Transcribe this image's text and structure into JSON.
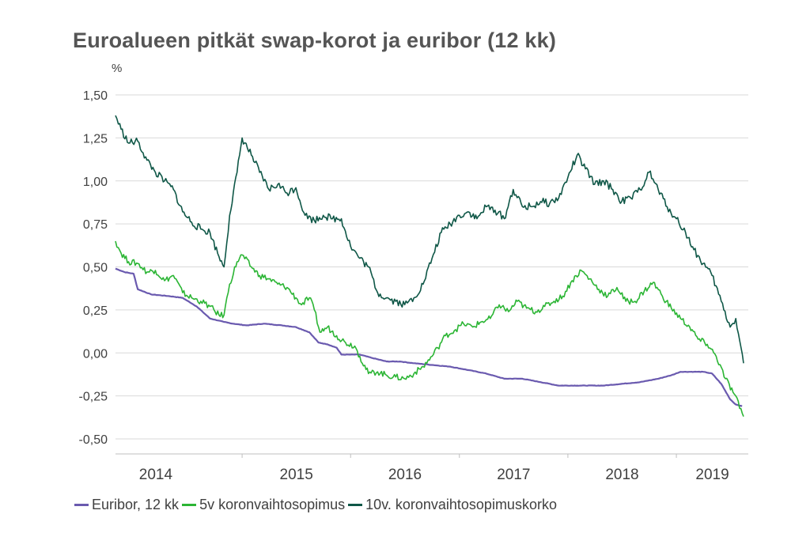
{
  "chart_data": {
    "type": "line",
    "title": "Euroalueen pitkät swap-korot ja euribor (12 kk)",
    "ylabel": "%",
    "xlabel": "",
    "ylim": [
      -0.5,
      1.5
    ],
    "xlim": [
      "2013-11-01",
      "2019-08-31"
    ],
    "yticks": [
      "1,50",
      "1,25",
      "1,00",
      "0,75",
      "0,50",
      "0,25",
      "0,00",
      "-0,25",
      "-0,50"
    ],
    "ytick_values": [
      1.5,
      1.25,
      1.0,
      0.75,
      0.5,
      0.25,
      0.0,
      -0.25,
      -0.5
    ],
    "xticks": [
      "2014",
      "2015",
      "2016",
      "2017",
      "2018",
      "2019"
    ],
    "grid": "horizontal",
    "legend_position": "bottom",
    "series": [
      {
        "name": "Euribor, 12 kk",
        "color": "#6a5aaf",
        "points": [
          [
            "2013-11-01",
            0.49
          ],
          [
            "2013-12-01",
            0.47
          ],
          [
            "2014-01-01",
            0.46
          ],
          [
            "2014-01-15",
            0.37
          ],
          [
            "2014-03-01",
            0.34
          ],
          [
            "2014-05-01",
            0.33
          ],
          [
            "2014-06-15",
            0.32
          ],
          [
            "2014-08-01",
            0.27
          ],
          [
            "2014-09-15",
            0.2
          ],
          [
            "2014-11-01",
            0.18
          ],
          [
            "2014-12-01",
            0.17
          ],
          [
            "2015-01-15",
            0.16
          ],
          [
            "2015-03-15",
            0.17
          ],
          [
            "2015-05-15",
            0.16
          ],
          [
            "2015-07-01",
            0.15
          ],
          [
            "2015-08-15",
            0.12
          ],
          [
            "2015-09-15",
            0.06
          ],
          [
            "2015-10-15",
            0.05
          ],
          [
            "2015-11-15",
            0.03
          ],
          [
            "2015-12-01",
            -0.01
          ],
          [
            "2016-01-01",
            -0.01
          ],
          [
            "2016-02-01",
            -0.01
          ],
          [
            "2016-03-15",
            -0.03
          ],
          [
            "2016-05-01",
            -0.05
          ],
          [
            "2016-06-15",
            -0.05
          ],
          [
            "2016-08-01",
            -0.06
          ],
          [
            "2016-10-01",
            -0.07
          ],
          [
            "2016-12-01",
            -0.08
          ],
          [
            "2017-02-01",
            -0.1
          ],
          [
            "2017-04-01",
            -0.12
          ],
          [
            "2017-06-01",
            -0.15
          ],
          [
            "2017-08-01",
            -0.15
          ],
          [
            "2017-10-01",
            -0.17
          ],
          [
            "2017-12-01",
            -0.19
          ],
          [
            "2018-02-01",
            -0.19
          ],
          [
            "2018-05-01",
            -0.19
          ],
          [
            "2018-07-01",
            -0.18
          ],
          [
            "2018-09-01",
            -0.17
          ],
          [
            "2018-11-01",
            -0.15
          ],
          [
            "2018-12-15",
            -0.13
          ],
          [
            "2019-01-15",
            -0.11
          ],
          [
            "2019-03-01",
            -0.11
          ],
          [
            "2019-04-01",
            -0.11
          ],
          [
            "2019-05-01",
            -0.12
          ],
          [
            "2019-06-01",
            -0.18
          ],
          [
            "2019-07-01",
            -0.27
          ],
          [
            "2019-07-20",
            -0.3
          ],
          [
            "2019-08-10",
            -0.31
          ]
        ]
      },
      {
        "name": "5v koronvaihtosopimus",
        "color": "#2bb534",
        "points": [
          [
            "2013-11-01",
            0.65
          ],
          [
            "2013-11-20",
            0.58
          ],
          [
            "2013-12-15",
            0.53
          ],
          [
            "2014-01-15",
            0.52
          ],
          [
            "2014-02-15",
            0.47
          ],
          [
            "2014-03-15",
            0.48
          ],
          [
            "2014-04-15",
            0.42
          ],
          [
            "2014-05-15",
            0.45
          ],
          [
            "2014-06-15",
            0.35
          ],
          [
            "2014-07-15",
            0.32
          ],
          [
            "2014-08-15",
            0.3
          ],
          [
            "2014-09-15",
            0.27
          ],
          [
            "2014-10-15",
            0.22
          ],
          [
            "2014-11-01",
            0.22
          ],
          [
            "2014-11-20",
            0.4
          ],
          [
            "2014-12-15",
            0.53
          ],
          [
            "2015-01-01",
            0.57
          ],
          [
            "2015-02-01",
            0.5
          ],
          [
            "2015-03-01",
            0.45
          ],
          [
            "2015-04-01",
            0.43
          ],
          [
            "2015-05-01",
            0.4
          ],
          [
            "2015-06-01",
            0.38
          ],
          [
            "2015-07-01",
            0.32
          ],
          [
            "2015-07-20",
            0.28
          ],
          [
            "2015-08-15",
            0.32
          ],
          [
            "2015-09-01",
            0.25
          ],
          [
            "2015-09-20",
            0.12
          ],
          [
            "2015-10-15",
            0.15
          ],
          [
            "2015-11-15",
            0.1
          ],
          [
            "2015-12-15",
            0.06
          ],
          [
            "2016-01-15",
            0.04
          ],
          [
            "2016-02-01",
            -0.02
          ],
          [
            "2016-03-01",
            -0.12
          ],
          [
            "2016-04-01",
            -0.11
          ],
          [
            "2016-05-01",
            -0.13
          ],
          [
            "2016-06-01",
            -0.14
          ],
          [
            "2016-07-01",
            -0.15
          ],
          [
            "2016-08-01",
            -0.12
          ],
          [
            "2016-09-01",
            -0.08
          ],
          [
            "2016-10-01",
            -0.02
          ],
          [
            "2016-10-20",
            0.03
          ],
          [
            "2016-11-15",
            0.1
          ],
          [
            "2016-12-15",
            0.13
          ],
          [
            "2017-01-15",
            0.17
          ],
          [
            "2017-02-15",
            0.15
          ],
          [
            "2017-03-15",
            0.18
          ],
          [
            "2017-04-15",
            0.2
          ],
          [
            "2017-05-15",
            0.28
          ],
          [
            "2017-06-15",
            0.24
          ],
          [
            "2017-07-15",
            0.3
          ],
          [
            "2017-08-15",
            0.26
          ],
          [
            "2017-09-15",
            0.24
          ],
          [
            "2017-10-15",
            0.27
          ],
          [
            "2017-11-15",
            0.3
          ],
          [
            "2017-12-15",
            0.33
          ],
          [
            "2018-01-15",
            0.42
          ],
          [
            "2018-02-15",
            0.48
          ],
          [
            "2018-03-15",
            0.43
          ],
          [
            "2018-04-15",
            0.37
          ],
          [
            "2018-05-15",
            0.33
          ],
          [
            "2018-06-15",
            0.38
          ],
          [
            "2018-07-15",
            0.3
          ],
          [
            "2018-08-15",
            0.3
          ],
          [
            "2018-09-15",
            0.36
          ],
          [
            "2018-10-15",
            0.41
          ],
          [
            "2018-11-15",
            0.33
          ],
          [
            "2018-12-15",
            0.26
          ],
          [
            "2019-01-15",
            0.2
          ],
          [
            "2019-02-15",
            0.15
          ],
          [
            "2019-03-15",
            0.08
          ],
          [
            "2019-04-15",
            0.05
          ],
          [
            "2019-05-15",
            -0.02
          ],
          [
            "2019-06-15",
            -0.15
          ],
          [
            "2019-07-15",
            -0.24
          ],
          [
            "2019-08-15",
            -0.37
          ]
        ]
      },
      {
        "name": "10v. koronvaihtosopimuskorko",
        "color": "#0f5747",
        "points": [
          [
            "2013-11-01",
            1.38
          ],
          [
            "2013-11-20",
            1.3
          ],
          [
            "2013-12-15",
            1.22
          ],
          [
            "2014-01-15",
            1.23
          ],
          [
            "2014-02-15",
            1.12
          ],
          [
            "2014-03-15",
            1.05
          ],
          [
            "2014-04-15",
            1.0
          ],
          [
            "2014-05-15",
            0.95
          ],
          [
            "2014-06-15",
            0.82
          ],
          [
            "2014-07-15",
            0.76
          ],
          [
            "2014-08-15",
            0.72
          ],
          [
            "2014-09-15",
            0.7
          ],
          [
            "2014-10-15",
            0.56
          ],
          [
            "2014-11-01",
            0.5
          ],
          [
            "2014-11-20",
            0.8
          ],
          [
            "2014-12-15",
            1.05
          ],
          [
            "2015-01-01",
            1.25
          ],
          [
            "2015-02-01",
            1.15
          ],
          [
            "2015-03-01",
            1.05
          ],
          [
            "2015-04-01",
            0.95
          ],
          [
            "2015-05-01",
            0.98
          ],
          [
            "2015-06-01",
            0.93
          ],
          [
            "2015-07-01",
            0.96
          ],
          [
            "2015-08-01",
            0.8
          ],
          [
            "2015-09-01",
            0.77
          ],
          [
            "2015-10-01",
            0.8
          ],
          [
            "2015-11-01",
            0.78
          ],
          [
            "2015-12-01",
            0.78
          ],
          [
            "2016-01-01",
            0.62
          ],
          [
            "2016-02-01",
            0.55
          ],
          [
            "2016-03-01",
            0.5
          ],
          [
            "2016-04-01",
            0.35
          ],
          [
            "2016-05-01",
            0.32
          ],
          [
            "2016-06-01",
            0.3
          ],
          [
            "2016-07-01",
            0.28
          ],
          [
            "2016-08-01",
            0.32
          ],
          [
            "2016-09-01",
            0.4
          ],
          [
            "2016-10-01",
            0.55
          ],
          [
            "2016-11-01",
            0.7
          ],
          [
            "2016-12-01",
            0.75
          ],
          [
            "2017-01-01",
            0.8
          ],
          [
            "2017-02-01",
            0.82
          ],
          [
            "2017-03-01",
            0.78
          ],
          [
            "2017-04-01",
            0.85
          ],
          [
            "2017-05-01",
            0.83
          ],
          [
            "2017-06-01",
            0.78
          ],
          [
            "2017-07-01",
            0.95
          ],
          [
            "2017-08-01",
            0.85
          ],
          [
            "2017-09-01",
            0.85
          ],
          [
            "2017-10-01",
            0.88
          ],
          [
            "2017-11-01",
            0.87
          ],
          [
            "2017-12-01",
            0.9
          ],
          [
            "2018-01-01",
            1.02
          ],
          [
            "2018-02-01",
            1.15
          ],
          [
            "2018-03-01",
            1.07
          ],
          [
            "2018-04-01",
            0.98
          ],
          [
            "2018-05-01",
            1.0
          ],
          [
            "2018-06-01",
            0.95
          ],
          [
            "2018-07-01",
            0.88
          ],
          [
            "2018-08-01",
            0.9
          ],
          [
            "2018-09-01",
            0.95
          ],
          [
            "2018-10-01",
            1.05
          ],
          [
            "2018-11-01",
            0.95
          ],
          [
            "2018-12-01",
            0.85
          ],
          [
            "2019-01-01",
            0.78
          ],
          [
            "2019-02-01",
            0.7
          ],
          [
            "2019-03-01",
            0.6
          ],
          [
            "2019-04-01",
            0.52
          ],
          [
            "2019-05-01",
            0.45
          ],
          [
            "2019-06-01",
            0.3
          ],
          [
            "2019-07-01",
            0.15
          ],
          [
            "2019-07-20",
            0.2
          ],
          [
            "2019-08-15",
            -0.06
          ]
        ]
      }
    ]
  }
}
